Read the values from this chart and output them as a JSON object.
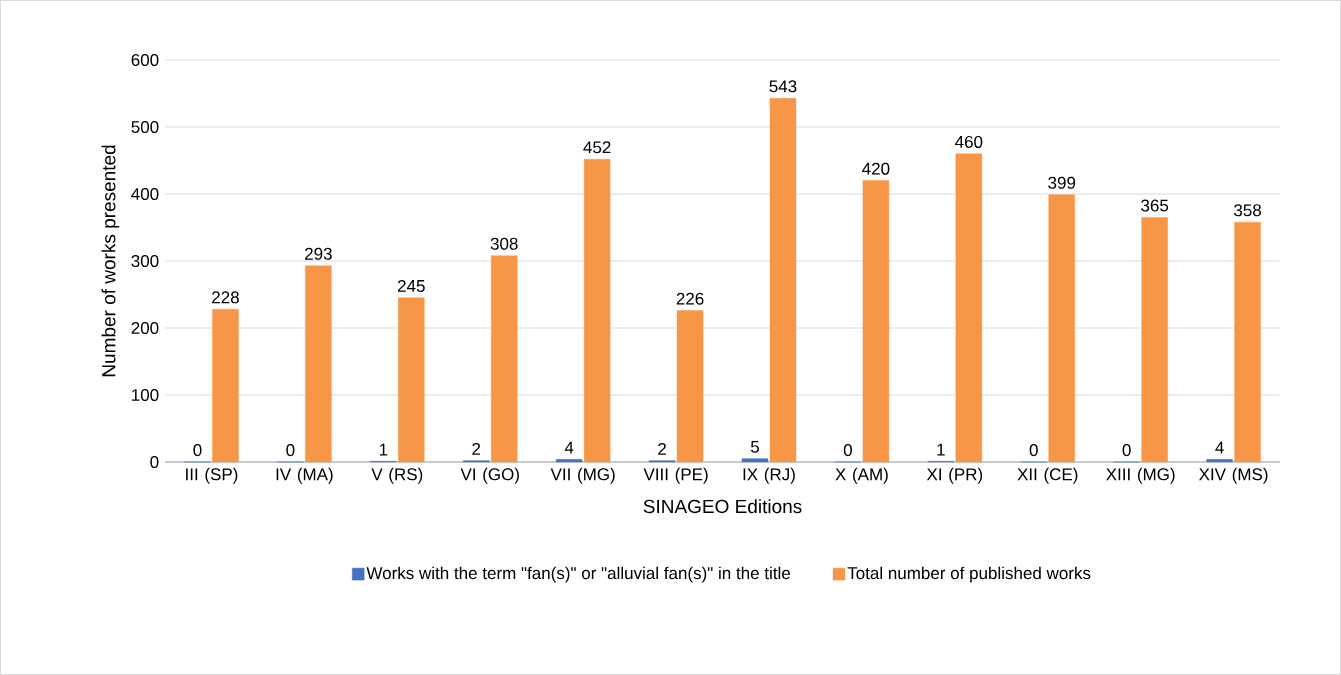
{
  "chart_data": {
    "type": "bar",
    "xlabel": "SINAGEO Editions",
    "ylabel": "Number of works presented",
    "categories": [
      "III (SP)",
      "IV (MA)",
      "V (RS)",
      "VI (GO)",
      "VII (MG)",
      "VIII (PE)",
      "IX (RJ)",
      "X (AM)",
      "XI (PR)",
      "XII (CE)",
      "XIII (MG)",
      "XIV (MS)"
    ],
    "series": [
      {
        "name": "Works with the term \"fan(s)\" or \"alluvial fan(s)\" in the title",
        "color": "#4472c4",
        "values": [
          0,
          0,
          1,
          2,
          4,
          2,
          5,
          0,
          1,
          0,
          0,
          4
        ]
      },
      {
        "name": "Total number of published works",
        "color": "#f79646",
        "values": [
          228,
          293,
          245,
          308,
          452,
          226,
          543,
          420,
          460,
          399,
          365,
          358
        ]
      }
    ],
    "ylim": [
      0,
      600
    ],
    "yticks": [
      0,
      100,
      200,
      300,
      400,
      500,
      600
    ],
    "grid": "y",
    "legend": "bottom",
    "data_labels": true
  }
}
